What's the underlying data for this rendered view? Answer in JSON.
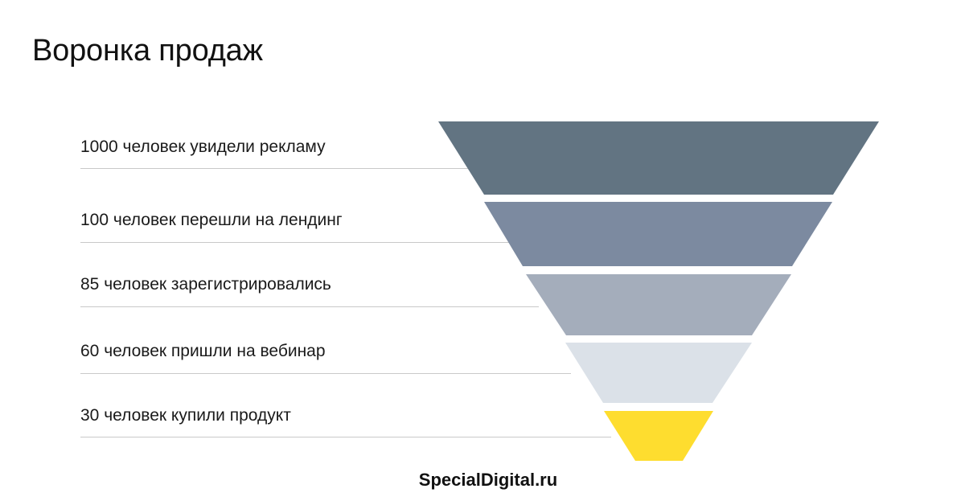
{
  "title": "Воронка продаж",
  "stages": [
    {
      "label": "1000 человек увидели рекламу",
      "color": "#627482"
    },
    {
      "label": "100 человек перешли на лендинг",
      "color": "#7c8aa0"
    },
    {
      "label": "85 человек зарегистрировались",
      "color": "#a4adbb"
    },
    {
      "label": "60 человек пришли на вебинар",
      "color": "#dbe1e8"
    },
    {
      "label": "30 человек купили продукт",
      "color": "#fedd2f"
    }
  ],
  "footer": {
    "brand": "SpecialDigital.ru"
  }
}
